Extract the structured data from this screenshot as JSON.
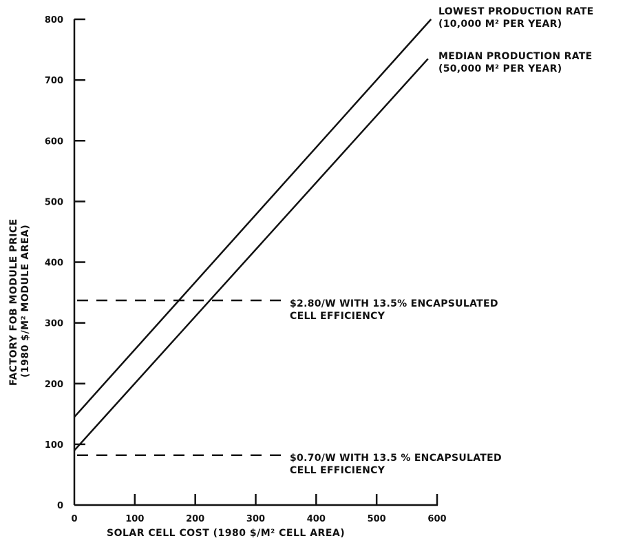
{
  "chart_data": {
    "type": "line",
    "xlabel": "SOLAR CELL COST (1980 $/M² CELL AREA)",
    "ylabel_line1": "FACTORY FOB MODULE PRICE",
    "ylabel_line2": "(1980 $/M² MODULE AREA)",
    "xlim": [
      0,
      600
    ],
    "ylim": [
      0,
      800
    ],
    "x_ticks": [
      0,
      100,
      200,
      300,
      400,
      500,
      600
    ],
    "x_tick_labels": [
      "0",
      "100",
      "200",
      "300",
      "400",
      "500",
      "600"
    ],
    "y_ticks": [
      0,
      100,
      200,
      300,
      400,
      500,
      600,
      700,
      800
    ],
    "y_tick_labels": [
      "0",
      "100",
      "200",
      "300",
      "400",
      "500",
      "600",
      "700",
      "800"
    ],
    "grid": false,
    "series": [
      {
        "name": "LOWEST PRODUCTION RATE (10,000 M² PER YEAR)",
        "label_line1": "LOWEST PRODUCTION RATE",
        "label_line2": "(10,000 M² PER YEAR)",
        "style": "solid",
        "x": [
          0,
          590
        ],
        "y": [
          145,
          800
        ]
      },
      {
        "name": "MEDIAN PRODUCTION RATE (50,000 M² PER YEAR)",
        "label_line1": "MEDIAN PRODUCTION RATE",
        "label_line2": "(50,000 M² PER YEAR)",
        "style": "solid",
        "x": [
          0,
          585
        ],
        "y": [
          90,
          735
        ]
      }
    ],
    "reference_lines": [
      {
        "y": 337,
        "style": "dashed",
        "x_range": [
          0,
          355
        ],
        "label_line1": "$2.80/W WITH 13.5% ENCAPSULATED",
        "label_line2": "CELL EFFICIENCY"
      },
      {
        "y": 82,
        "style": "dashed",
        "x_range": [
          0,
          355
        ],
        "label_line1": "$0.70/W WITH 13.5 % ENCAPSULATED",
        "label_line2": "CELL EFFICIENCY"
      }
    ]
  },
  "colors": {
    "ink": "#111111",
    "background": "#ffffff"
  }
}
